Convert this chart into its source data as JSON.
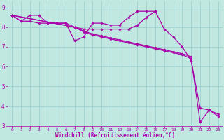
{
  "bg_color": "#c0e8e0",
  "line_color": "#aa00aa",
  "grid_color": "#99cccc",
  "xlabel": "Windchill (Refroidissement éolien,°C)",
  "xlabel_color": "#aa00aa",
  "xlim": [
    -0.5,
    23.5
  ],
  "ylim": [
    3,
    9.3
  ],
  "xticks": [
    0,
    1,
    2,
    3,
    4,
    5,
    6,
    7,
    8,
    9,
    10,
    11,
    12,
    13,
    14,
    15,
    16,
    17,
    18,
    19,
    20,
    21,
    22,
    23
  ],
  "yticks": [
    3,
    4,
    5,
    6,
    7,
    8,
    9
  ],
  "series": [
    {
      "x": [
        0,
        1,
        2,
        3,
        4,
        5,
        6,
        7,
        8,
        9,
        10,
        11,
        12,
        13,
        14,
        15,
        16,
        17,
        18,
        19,
        20,
        21,
        22,
        23
      ],
      "y": [
        8.6,
        8.3,
        8.3,
        8.2,
        8.2,
        8.2,
        8.2,
        8.0,
        7.9,
        7.9,
        7.9,
        7.9,
        7.9,
        7.9,
        8.1,
        8.5,
        8.8,
        7.9,
        7.5,
        7.0,
        6.3,
        3.9,
        3.8,
        3.6
      ]
    },
    {
      "x": [
        0,
        1,
        2,
        3,
        4,
        5,
        6,
        7,
        8,
        9,
        10,
        11,
        12,
        13,
        14,
        15,
        16
      ],
      "y": [
        8.6,
        8.3,
        8.6,
        8.6,
        8.2,
        8.2,
        8.2,
        7.3,
        7.5,
        8.2,
        8.2,
        8.1,
        8.1,
        8.5,
        8.8,
        8.8,
        8.8
      ]
    },
    {
      "x": [
        0,
        7,
        8,
        9,
        10,
        11,
        12,
        13,
        14,
        15,
        16,
        17,
        18,
        19,
        20
      ],
      "y": [
        8.6,
        8.0,
        7.8,
        7.65,
        7.55,
        7.45,
        7.35,
        7.25,
        7.15,
        7.05,
        6.95,
        6.85,
        6.75,
        6.65,
        6.5
      ]
    },
    {
      "x": [
        0,
        7,
        8,
        9,
        10,
        11,
        12,
        13,
        14,
        15,
        16,
        17,
        18,
        19,
        20,
        21,
        22,
        23
      ],
      "y": [
        8.6,
        8.0,
        7.75,
        7.6,
        7.5,
        7.4,
        7.3,
        7.2,
        7.1,
        7.0,
        6.9,
        6.8,
        6.7,
        6.6,
        6.4,
        3.2,
        3.8,
        3.5
      ]
    }
  ]
}
